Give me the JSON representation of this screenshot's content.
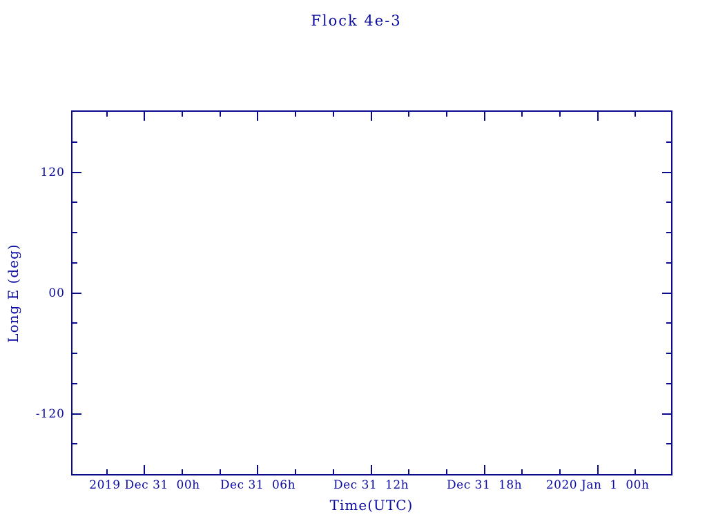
{
  "colors": {
    "axis_line": "#0a0a8c",
    "text": "#0a0aa0",
    "background": "#ffffff"
  },
  "chart_data": {
    "type": "line",
    "title": "Flock 4e-3",
    "xlabel": "Time(UTC)",
    "ylabel": "Long E (deg)",
    "series": [],
    "grid": false,
    "legend": false,
    "x_axis": {
      "unit": "hours relative to 2019 Dec 31 00h UTC",
      "min": -3.82,
      "max": 27.89,
      "major_ticks": [
        0,
        6,
        12,
        18,
        24
      ],
      "major_tick_labels": [
        "2019 Dec 31  00h",
        "Dec 31  06h",
        "Dec 31  12h",
        "Dec 31  18h",
        "2020 Jan  1  00h"
      ],
      "minor_ticks": [
        -2,
        2,
        4,
        8,
        10,
        14,
        16,
        20,
        22,
        26
      ]
    },
    "y_axis": {
      "unit": "deg",
      "min": -180,
      "max": 180,
      "major_ticks": [
        120,
        0,
        -120
      ],
      "major_tick_labels": [
        "120",
        "00",
        "-120"
      ],
      "minor_ticks": [
        150,
        90,
        60,
        30,
        -30,
        -60,
        -90,
        -150
      ]
    }
  }
}
